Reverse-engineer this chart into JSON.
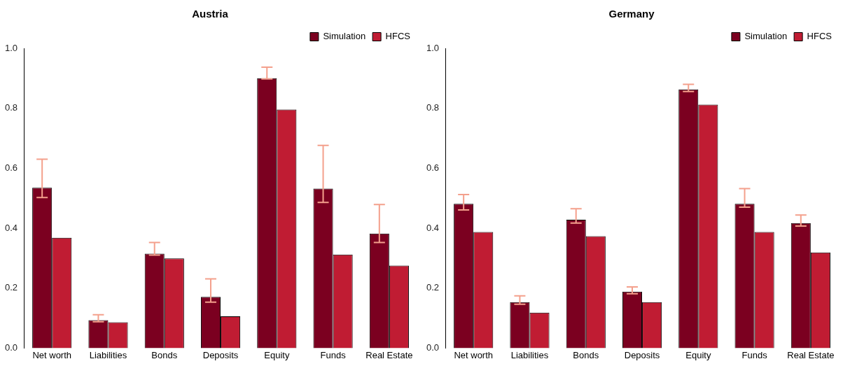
{
  "chart_data": [
    {
      "type": "bar",
      "title": "Austria",
      "categories": [
        "Net worth",
        "Liabilities",
        "Bonds",
        "Deposits",
        "Equity",
        "Funds",
        "Real Estate"
      ],
      "series": [
        {
          "name": "Simulation",
          "color": "#7b0020",
          "values": [
            0.535,
            0.093,
            0.315,
            0.171,
            0.9,
            0.532,
            0.382
          ],
          "errors": [
            [
              0.502,
              0.63
            ],
            [
              0.088,
              0.111
            ],
            [
              0.31,
              0.352
            ],
            [
              0.153,
              0.231
            ],
            [
              0.898,
              0.937
            ],
            [
              0.486,
              0.676
            ],
            [
              0.352,
              0.479
            ]
          ]
        },
        {
          "name": "HFCS",
          "color": "#c01c33",
          "values": [
            0.368,
            0.086,
            0.299,
            0.106,
            0.796,
            0.312,
            0.275
          ]
        }
      ],
      "ylim": [
        0,
        1
      ],
      "yticks": [
        {
          "value": 0,
          "label": "0.0"
        },
        {
          "value": 0.2,
          "label": "0.2"
        },
        {
          "value": 0.4,
          "label": "0.4"
        },
        {
          "value": 0.6,
          "label": "0.6"
        },
        {
          "value": 0.8,
          "label": "0.8"
        },
        {
          "value": 1,
          "label": "1.0"
        }
      ],
      "grid": false,
      "legend": "top right"
    },
    {
      "type": "bar",
      "title": "Germany",
      "categories": [
        "Net worth",
        "Liabilities",
        "Bonds",
        "Deposits",
        "Equity",
        "Funds",
        "Real Estate"
      ],
      "series": [
        {
          "name": "Simulation",
          "color": "#7b0020",
          "values": [
            0.481,
            0.153,
            0.428,
            0.188,
            0.863,
            0.481,
            0.417
          ],
          "errors": [
            [
              0.461,
              0.512
            ],
            [
              0.146,
              0.174
            ],
            [
              0.417,
              0.465
            ],
            [
              0.181,
              0.204
            ],
            [
              0.856,
              0.88
            ],
            [
              0.47,
              0.532
            ],
            [
              0.407,
              0.444
            ]
          ]
        },
        {
          "name": "HFCS",
          "color": "#c01c33",
          "values": [
            0.387,
            0.118,
            0.373,
            0.153,
            0.812,
            0.387,
            0.319
          ]
        }
      ],
      "ylim": [
        0,
        1
      ],
      "yticks": [
        {
          "value": 0,
          "label": "0.0"
        },
        {
          "value": 0.2,
          "label": "0.2"
        },
        {
          "value": 0.4,
          "label": "0.4"
        },
        {
          "value": 0.6,
          "label": "0.6"
        },
        {
          "value": 0.8,
          "label": "0.8"
        },
        {
          "value": 1,
          "label": "1.0"
        }
      ],
      "grid": false,
      "legend": "top right"
    }
  ]
}
